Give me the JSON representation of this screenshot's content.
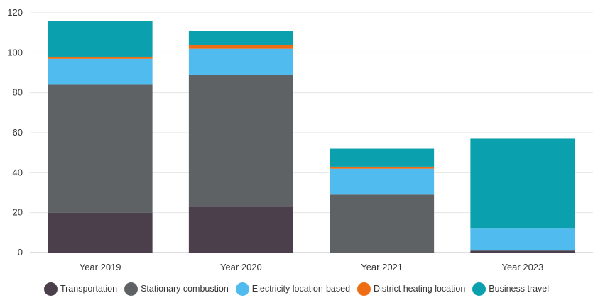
{
  "chart_data": {
    "type": "bar",
    "stacked": true,
    "categories": [
      "Year 2019",
      "Year 2020",
      "Year 2021",
      "Year 2023"
    ],
    "series": [
      {
        "name": "Transportation",
        "color": "#4a3f4b",
        "values": [
          20,
          23,
          0,
          1
        ]
      },
      {
        "name": "Stationary combustion",
        "color": "#5e6264",
        "values": [
          64,
          66,
          29,
          0
        ]
      },
      {
        "name": "Electricity location-based",
        "color": "#4fbbee",
        "values": [
          13,
          13,
          13,
          11
        ]
      },
      {
        "name": "District heating location",
        "color": "#ee6c14",
        "values": [
          1,
          2,
          1,
          0
        ]
      },
      {
        "name": "Business travel",
        "color": "#0aa0ad",
        "values": [
          18,
          7,
          9,
          45
        ]
      }
    ],
    "ylim": [
      0,
      120
    ],
    "yticks": [
      0,
      20,
      40,
      60,
      80,
      100,
      120
    ],
    "grid": true,
    "legend_position": "bottom",
    "title": "",
    "xlabel": "",
    "ylabel": ""
  }
}
